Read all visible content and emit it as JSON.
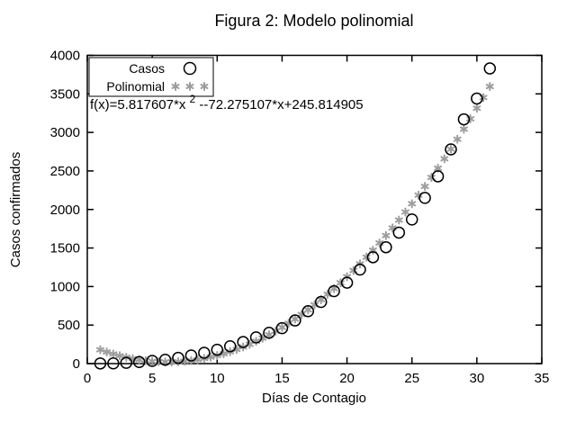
{
  "title": "Figura 2: Modelo polinomial",
  "equation": {
    "prefix": "f(x)=5.817607*x",
    "superscript": "2",
    "suffix": " --72.275107*x+245.814905"
  },
  "legend": {
    "entries": [
      {
        "label": "Casos",
        "marker": "open-circle",
        "sample_count": 1
      },
      {
        "label": "Polinomial",
        "marker": "asterisk",
        "sample_count": 3
      }
    ]
  },
  "colors": {
    "background": "#ffffff",
    "text": "#000000",
    "border": "#000000",
    "casos_marker": "#000000",
    "polinomial_marker": "#9e9e9e"
  },
  "chart_data": {
    "type": "scatter",
    "title": "Figura 2: Modelo polinomial",
    "xlabel": "Días de Contagio",
    "ylabel": "Casos confirmados",
    "xlim": [
      0,
      35
    ],
    "ylim": [
      0,
      4000
    ],
    "x_ticks": [
      0,
      5,
      10,
      15,
      20,
      25,
      30,
      35
    ],
    "y_ticks": [
      0,
      500,
      1000,
      1500,
      2000,
      2500,
      3000,
      3500,
      4000
    ],
    "grid": false,
    "legend_position": "top-left-inside",
    "annotation_equation": "f(x)=5.817607*x^2 --72.275107*x+245.814905",
    "series": [
      {
        "name": "Casos",
        "marker": "open-circle",
        "color": "#000000",
        "x": [
          1,
          2,
          3,
          4,
          5,
          6,
          7,
          8,
          9,
          10,
          11,
          12,
          13,
          14,
          15,
          16,
          17,
          18,
          19,
          20,
          21,
          22,
          23,
          24,
          25,
          26,
          27,
          28,
          29,
          30,
          31
        ],
        "y": [
          2,
          3,
          10,
          20,
          35,
          50,
          75,
          105,
          140,
          180,
          225,
          280,
          340,
          400,
          460,
          560,
          680,
          800,
          940,
          1050,
          1220,
          1380,
          1510,
          1700,
          1870,
          2150,
          2430,
          2780,
          3170,
          3440,
          3830
        ]
      },
      {
        "name": "Polinomial",
        "marker": "asterisk",
        "color": "#9e9e9e",
        "function": "f(x)=5.817607*x^2-72.275107*x+245.814905",
        "coefficients": {
          "a2": 5.817607,
          "a1": -72.275107,
          "a0": 245.814905
        },
        "sample_x_start": 1,
        "sample_x_end": 31,
        "sample_x_step": 0.5
      }
    ]
  }
}
